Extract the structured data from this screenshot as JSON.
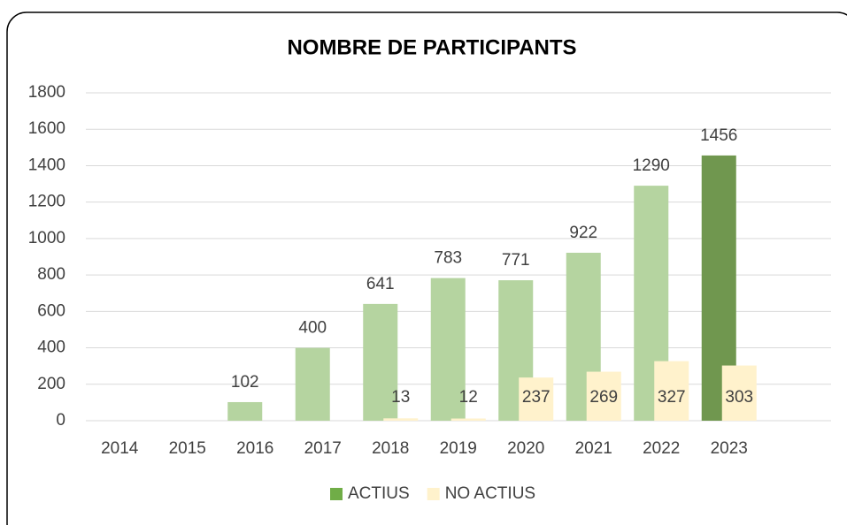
{
  "chart_data": {
    "type": "bar",
    "title": "NOMBRE DE PARTICIPANTS",
    "categories": [
      "2014",
      "2015",
      "2016",
      "2017",
      "2018",
      "2019",
      "2020",
      "2021",
      "2022",
      "2023"
    ],
    "series": [
      {
        "name": "ACTIUS",
        "color": "#70ad47",
        "colors": [
          "#b5d4a0",
          "#b5d4a0",
          "#b5d4a0",
          "#b5d4a0",
          "#b5d4a0",
          "#b5d4a0",
          "#b5d4a0",
          "#b5d4a0",
          "#b5d4a0",
          "#70974f"
        ],
        "values": [
          null,
          null,
          102,
          400,
          641,
          783,
          771,
          922,
          1290,
          1456
        ]
      },
      {
        "name": "NO ACTIUS",
        "color": "#fff2cc",
        "values": [
          null,
          null,
          null,
          null,
          13,
          12,
          237,
          269,
          327,
          303
        ]
      }
    ],
    "ylim": [
      0,
      1800
    ],
    "yticks": [
      0,
      200,
      400,
      600,
      800,
      1000,
      1200,
      1400,
      1600,
      1800
    ],
    "grid": true,
    "legend": "bottom"
  }
}
